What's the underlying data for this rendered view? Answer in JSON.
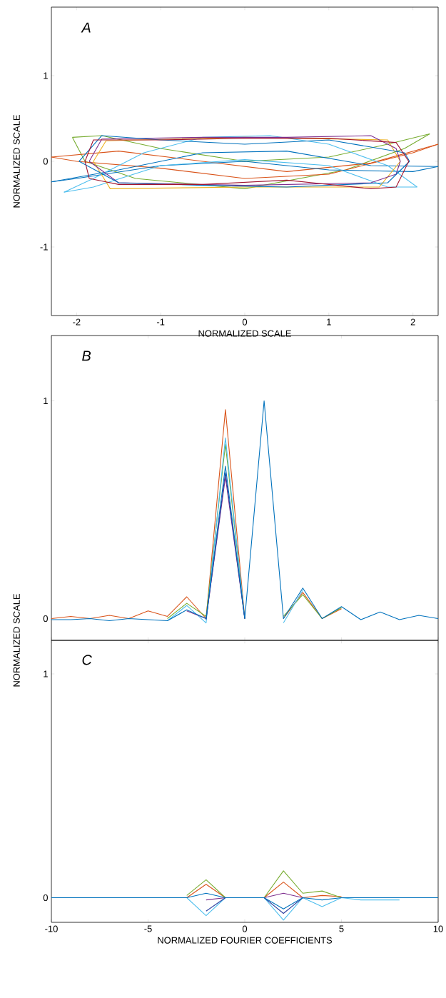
{
  "chart_data": [
    {
      "type": "line",
      "title": "A",
      "xlabel": "NORMALIZED SCALE",
      "ylabel": "NORMALIZED SCALE",
      "xlim": [
        -2.3,
        2.3
      ],
      "ylim": [
        -1.8,
        1.8
      ],
      "xticks": [
        -2,
        -1,
        0,
        1,
        2
      ],
      "yticks": [
        -1,
        0,
        1
      ],
      "series": [
        {
          "color": "#77ac30",
          "x": [
            -2.05,
            -1.7,
            -1.0,
            0.0,
            1.0,
            1.7,
            2.2
          ],
          "values": [
            0.28,
            0.3,
            0.15,
            0.0,
            0.05,
            0.2,
            0.32
          ]
        },
        {
          "color": "#77ac30",
          "x": [
            -2.05,
            -1.9,
            -1.3,
            0.0,
            1.2,
            1.9,
            2.2
          ],
          "values": [
            0.28,
            0.0,
            -0.2,
            -0.32,
            -0.1,
            0.15,
            0.32
          ]
        },
        {
          "color": "#d95319",
          "x": [
            -2.3,
            -1.5,
            -0.5,
            0.5,
            1.5,
            2.3
          ],
          "values": [
            0.05,
            0.12,
            0.0,
            -0.12,
            -0.02,
            0.2
          ]
        },
        {
          "color": "#d95319",
          "x": [
            -2.3,
            -2.0,
            -1.0,
            0.0,
            1.0,
            2.0,
            2.3
          ],
          "values": [
            0.05,
            0.0,
            -0.08,
            -0.2,
            -0.15,
            0.1,
            0.2
          ]
        },
        {
          "color": "#0072bd",
          "x": [
            -2.3,
            -1.5,
            -0.5,
            0.5,
            1.5,
            2.3
          ],
          "values": [
            -0.24,
            -0.1,
            0.1,
            0.12,
            -0.05,
            -0.06
          ]
        },
        {
          "color": "#0072bd",
          "x": [
            -2.3,
            -2.0,
            -1.0,
            0.0,
            1.0,
            2.0,
            2.3
          ],
          "values": [
            -0.24,
            -0.2,
            -0.05,
            0.0,
            -0.1,
            -0.12,
            -0.06
          ]
        },
        {
          "color": "#4dbeee",
          "x": [
            -2.15,
            -1.8,
            -1.2,
            -0.5,
            0.3,
            1.0,
            1.7,
            2.05
          ],
          "values": [
            -0.36,
            -0.2,
            0.1,
            0.28,
            0.3,
            0.2,
            -0.05,
            -0.3
          ]
        },
        {
          "color": "#4dbeee",
          "x": [
            -2.15,
            -1.8,
            -1.0,
            0.0,
            1.0,
            1.7,
            2.05
          ],
          "values": [
            -0.36,
            -0.3,
            -0.05,
            0.02,
            -0.05,
            -0.3,
            -0.3
          ]
        },
        {
          "color": "#edb120",
          "x": [
            -1.8,
            -1.65,
            0.0,
            1.7,
            1.85
          ],
          "values": [
            0.0,
            0.24,
            0.28,
            0.25,
            0.0
          ]
        },
        {
          "color": "#edb120",
          "x": [
            -1.8,
            -1.6,
            0.0,
            1.6,
            1.85
          ],
          "values": [
            0.0,
            -0.32,
            -0.3,
            -0.3,
            0.0
          ]
        },
        {
          "color": "#7e2f8e",
          "x": [
            -1.85,
            -1.7,
            -0.5,
            0.5,
            1.5,
            1.8,
            1.85
          ],
          "values": [
            0.0,
            0.26,
            0.28,
            0.28,
            0.3,
            0.15,
            0.0
          ]
        },
        {
          "color": "#7e2f8e",
          "x": [
            -1.85,
            -1.5,
            0.0,
            1.5,
            1.8,
            1.85
          ],
          "values": [
            0.0,
            -0.25,
            -0.28,
            -0.25,
            -0.15,
            0.0
          ]
        },
        {
          "color": "#0072bd",
          "x": [
            -1.97,
            -1.7,
            -1.0,
            0.0,
            1.0,
            1.9,
            1.96
          ],
          "values": [
            0.0,
            0.3,
            0.25,
            0.2,
            0.25,
            0.1,
            0.0
          ]
        },
        {
          "color": "#0072bd",
          "x": [
            -1.97,
            -1.5,
            -0.5,
            0.5,
            1.7,
            1.96
          ],
          "values": [
            0.0,
            -0.25,
            -0.28,
            -0.3,
            -0.25,
            0.0
          ]
        },
        {
          "color": "#a2142f",
          "x": [
            -1.9,
            -1.8,
            -1.0,
            0.0,
            1.0,
            1.8,
            1.95
          ],
          "values": [
            0.0,
            0.25,
            0.25,
            0.27,
            0.27,
            0.22,
            0.0
          ]
        },
        {
          "color": "#a2142f",
          "x": [
            -1.9,
            -1.85,
            -1.5,
            -0.5,
            0.5,
            1.5,
            1.8,
            1.95
          ],
          "values": [
            0.0,
            -0.2,
            -0.27,
            -0.27,
            -0.22,
            -0.32,
            -0.3,
            0.0
          ]
        }
      ]
    },
    {
      "type": "line",
      "title": "B",
      "ylabel": "NORMALIZED SCALE",
      "xlim": [
        -10,
        10
      ],
      "ylim": [
        -0.1,
        1.3
      ],
      "xticks": [
        -10,
        -5,
        0,
        5,
        10
      ],
      "yticks": [
        0,
        1
      ],
      "tick_labels": "y",
      "x": [
        -10,
        -9,
        -8,
        -7,
        -6,
        -5,
        -4,
        -3,
        -2,
        -1,
        0,
        1,
        2,
        3,
        4,
        5,
        6,
        7,
        8,
        9,
        10
      ],
      "series": [
        {
          "color": "#d95319",
          "values": [
            0,
            0.01,
            0,
            0.015,
            0,
            0.035,
            0.01,
            0.1,
            0,
            0.96,
            0,
            null,
            0,
            0.12,
            0,
            0.045,
            null,
            null,
            null,
            null,
            null
          ]
        },
        {
          "color": "#77ac30",
          "values": [
            null,
            null,
            null,
            null,
            null,
            null,
            0,
            0.07,
            0.01,
            0.8,
            0,
            null,
            0.01,
            0.11,
            0,
            0.05,
            null,
            null,
            null,
            null,
            null
          ]
        },
        {
          "color": "#4dbeee",
          "values": [
            null,
            null,
            null,
            null,
            null,
            null,
            -0.01,
            0.06,
            -0.02,
            0.83,
            0,
            null,
            -0.02,
            0.13,
            null,
            null,
            null,
            null,
            null,
            null,
            null
          ]
        },
        {
          "color": "#7e2f8e",
          "values": [
            null,
            null,
            null,
            null,
            null,
            null,
            null,
            0.035,
            0,
            0.65,
            0,
            null,
            null,
            null,
            null,
            null,
            null,
            null,
            null,
            null,
            null
          ]
        },
        {
          "color": "#2b3d9e",
          "values": [
            null,
            null,
            null,
            null,
            null,
            null,
            null,
            null,
            -0.005,
            0.67,
            0,
            null,
            null,
            null,
            null,
            null,
            null,
            null,
            null,
            null,
            null
          ]
        },
        {
          "color": "#0072bd",
          "values": [
            -0.005,
            -0.005,
            0,
            -0.01,
            0,
            -0.005,
            -0.01,
            0.04,
            0,
            0.7,
            0,
            1,
            0,
            0.14,
            0,
            0.055,
            -0.005,
            0.03,
            -0.005,
            0.015,
            0
          ]
        }
      ]
    },
    {
      "type": "line",
      "title": "C",
      "xlabel": "NORMALIZED FOURIER COEFFICIENTS",
      "xlim": [
        -10,
        10
      ],
      "ylim": [
        -0.11,
        1.15
      ],
      "xticks": [
        -10,
        -5,
        0,
        5,
        10
      ],
      "yticks": [
        0,
        1
      ],
      "x": [
        -10,
        -9,
        -8,
        -7,
        -6,
        -5,
        -4,
        -3,
        -2,
        -1,
        0,
        1,
        2,
        3,
        4,
        5,
        6,
        7,
        8,
        9,
        10
      ],
      "series": [
        {
          "color": "#d95319",
          "values": [
            null,
            null,
            null,
            null,
            null,
            null,
            null,
            0,
            0.06,
            0,
            null,
            0,
            0.07,
            0,
            0.01,
            0.005,
            null,
            null,
            null,
            null,
            null
          ]
        },
        {
          "color": "#77ac30",
          "values": [
            null,
            null,
            null,
            null,
            null,
            null,
            null,
            0.01,
            0.08,
            0,
            null,
            0,
            0.12,
            0.02,
            0.03,
            0,
            null,
            null,
            null,
            null,
            null
          ]
        },
        {
          "color": "#4dbeee",
          "values": [
            null,
            null,
            null,
            null,
            null,
            null,
            null,
            0,
            -0.08,
            0,
            null,
            0,
            -0.1,
            0,
            -0.04,
            0,
            -0.01,
            -0.01,
            -0.01,
            null,
            null
          ]
        },
        {
          "color": "#7e2f8e",
          "values": [
            null,
            null,
            null,
            null,
            null,
            null,
            null,
            null,
            -0.01,
            0,
            null,
            0,
            0.02,
            0,
            null,
            null,
            null,
            null,
            null,
            null,
            null
          ]
        },
        {
          "color": "#2b3d9e",
          "values": [
            null,
            null,
            null,
            null,
            null,
            null,
            null,
            null,
            -0.06,
            0,
            null,
            0,
            -0.07,
            0,
            null,
            null,
            null,
            null,
            null,
            null,
            null
          ]
        },
        {
          "color": "#0072bd",
          "values": [
            0,
            0,
            0,
            0,
            0,
            0,
            0,
            0,
            0.02,
            0,
            0,
            0,
            -0.05,
            0,
            -0.01,
            0,
            0,
            0,
            0,
            0,
            0
          ]
        }
      ]
    }
  ]
}
